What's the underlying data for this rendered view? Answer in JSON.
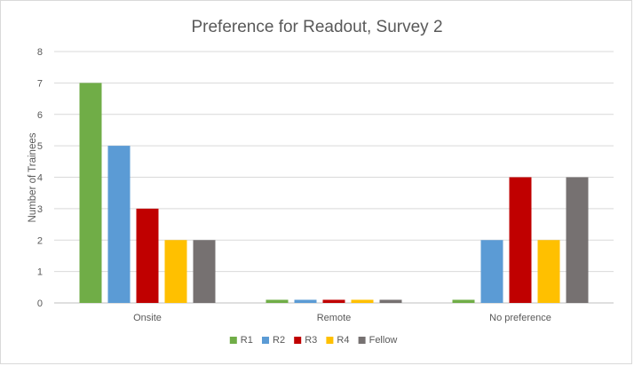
{
  "chart_data": {
    "type": "bar",
    "title": "Preference for Readout, Survey 2",
    "xlabel": "",
    "ylabel": "Number of Trainees",
    "categories": [
      "Onsite",
      "Remote",
      "No preference"
    ],
    "series": [
      {
        "name": "R1",
        "color": "#70ad47",
        "values": [
          7,
          0.1,
          0.1
        ]
      },
      {
        "name": "R2",
        "color": "#5b9bd5",
        "values": [
          5,
          0.1,
          2
        ]
      },
      {
        "name": "R3",
        "color": "#c00000",
        "values": [
          3,
          0.1,
          4
        ]
      },
      {
        "name": "R4",
        "color": "#ffc000",
        "values": [
          2,
          0.1,
          2
        ]
      },
      {
        "name": "Fellow",
        "color": "#767171",
        "values": [
          2,
          0.1,
          4
        ]
      }
    ],
    "ylim": [
      0,
      8
    ],
    "yticks": [
      "0",
      "1",
      "2",
      "3",
      "4",
      "5",
      "6",
      "7",
      "8"
    ],
    "grid": true,
    "legend_position": "bottom"
  }
}
